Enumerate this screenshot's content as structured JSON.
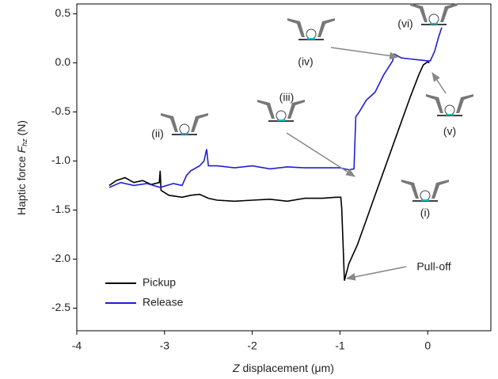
{
  "chart_data": {
    "type": "line",
    "y_label": {
      "parts": [
        "Haptic force ",
        "F",
        "hz",
        " (N)"
      ]
    },
    "x_label": {
      "parts": [
        "Z",
        " displacement (μm)"
      ]
    },
    "xlim": [
      -4,
      0.72
    ],
    "ylim": [
      -2.73,
      0.6
    ],
    "xticks": [
      -4,
      -3,
      -2,
      -1,
      0
    ],
    "yticks": [
      0.5,
      {
        "value": 0,
        "label": "0.0"
      },
      -0.5,
      {
        "value": -1,
        "label": "-1.0"
      },
      -1.5,
      {
        "value": -2,
        "label": "-2.0"
      },
      -2.5
    ],
    "legend": "lower-left",
    "series": [
      {
        "name": "Pickup",
        "color": "#000000",
        "x": [
          -3.63,
          -3.55,
          -3.45,
          -3.35,
          -3.25,
          -3.15,
          -3.06,
          -3.05,
          -3.04,
          -2.95,
          -2.8,
          -2.7,
          -2.6,
          -2.5,
          -2.4,
          -2.2,
          -2.0,
          -1.8,
          -1.6,
          -1.4,
          -1.2,
          -1.05,
          -0.99,
          -0.98,
          -0.96,
          -0.95,
          -0.9,
          -0.8,
          -0.7,
          -0.6,
          -0.5,
          -0.4,
          -0.3,
          -0.2,
          -0.1,
          -0.05,
          0.0,
          0.02
        ],
        "values": [
          -1.25,
          -1.2,
          -1.17,
          -1.22,
          -1.2,
          -1.24,
          -1.22,
          -1.1,
          -1.3,
          -1.35,
          -1.37,
          -1.35,
          -1.34,
          -1.38,
          -1.4,
          -1.41,
          -1.4,
          -1.39,
          -1.41,
          -1.38,
          -1.38,
          -1.37,
          -1.37,
          -1.48,
          -1.95,
          -2.22,
          -2.05,
          -1.85,
          -1.6,
          -1.35,
          -1.1,
          -0.85,
          -0.6,
          -0.35,
          -0.12,
          -0.02,
          0.01,
          0.0
        ]
      },
      {
        "name": "Release",
        "color": "#1f1fd6",
        "x": [
          -3.63,
          -3.5,
          -3.35,
          -3.2,
          -3.05,
          -2.9,
          -2.8,
          -2.75,
          -2.7,
          -2.6,
          -2.55,
          -2.52,
          -2.5,
          -2.4,
          -2.2,
          -2.0,
          -1.8,
          -1.6,
          -1.4,
          -1.2,
          -1.0,
          -0.9,
          -0.84,
          -0.82,
          -0.78,
          -0.7,
          -0.6,
          -0.5,
          -0.45,
          -0.4,
          -0.38,
          -0.3,
          -0.2,
          -0.1,
          0.0,
          0.03,
          0.08,
          0.12,
          0.16
        ],
        "values": [
          -1.27,
          -1.22,
          -1.25,
          -1.23,
          -1.27,
          -1.23,
          -1.25,
          -1.15,
          -1.1,
          -1.05,
          -1.0,
          -0.88,
          -1.05,
          -1.05,
          -1.07,
          -1.05,
          -1.08,
          -1.06,
          -1.07,
          -1.07,
          -1.07,
          -1.09,
          -1.08,
          -0.55,
          -0.5,
          -0.38,
          -0.3,
          -0.12,
          -0.05,
          0.02,
          0.09,
          0.05,
          0.04,
          0.03,
          0.02,
          0.02,
          0.12,
          0.25,
          0.36
        ]
      }
    ],
    "annotations": [
      "(i)",
      "(ii)",
      "(iii)",
      "(iv)",
      "(v)",
      "(vi)",
      "Pull-off"
    ]
  }
}
